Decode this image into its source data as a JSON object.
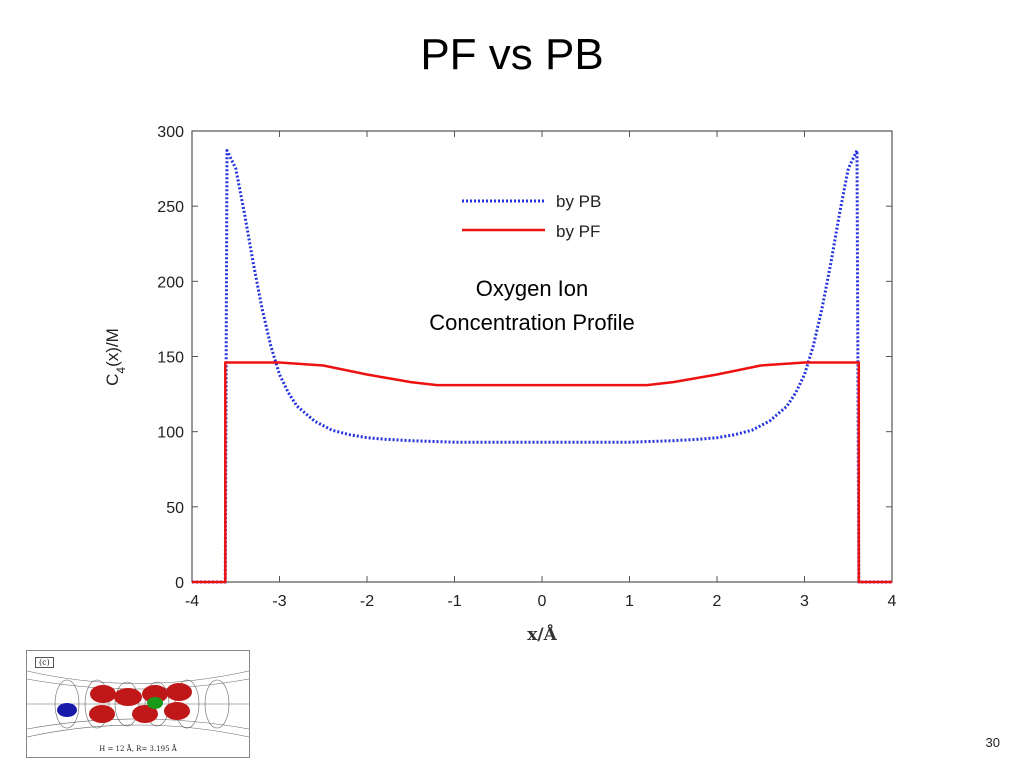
{
  "slide": {
    "title": "PF vs PB",
    "number": "30"
  },
  "thumbnail": {
    "tag": "(c)",
    "caption": "H = 12 Å, R= 3.195 Å"
  },
  "colors": {
    "pb": "#2233dd",
    "pf": "#ee1111",
    "axis": "#555555"
  },
  "chart_data": {
    "type": "line",
    "xlabel": "x/Å",
    "ylabel": "C4(x)/M",
    "xlim": [
      -4,
      4
    ],
    "ylim": [
      0,
      300
    ],
    "xticks": [
      -4,
      -3,
      -2,
      -1,
      0,
      1,
      2,
      3,
      4
    ],
    "yticks": [
      0,
      50,
      100,
      150,
      200,
      250,
      300
    ],
    "grid": false,
    "legend_position": "top-center",
    "annotation": [
      "Oxygen Ion",
      "Concentration Profile"
    ],
    "series": [
      {
        "name": "by PB",
        "style": "dotted",
        "color": "#2233dd",
        "x": [
          -4.0,
          -3.62,
          -3.62,
          -3.6,
          -3.5,
          -3.4,
          -3.3,
          -3.2,
          -3.1,
          -3.0,
          -2.9,
          -2.8,
          -2.6,
          -2.4,
          -2.2,
          -2.0,
          -1.8,
          -1.5,
          -1.0,
          -0.5,
          0.0,
          0.5,
          1.0,
          1.5,
          1.8,
          2.0,
          2.2,
          2.4,
          2.6,
          2.8,
          2.9,
          3.0,
          3.1,
          3.2,
          3.3,
          3.4,
          3.5,
          3.6,
          3.62,
          3.62,
          4.0
        ],
        "y": [
          0,
          0,
          5,
          287,
          275,
          245,
          212,
          182,
          157,
          138,
          126,
          117,
          107,
          101,
          98,
          96,
          95,
          94,
          93,
          93,
          93,
          93,
          93,
          94,
          95,
          96,
          98,
          101,
          107,
          117,
          126,
          138,
          157,
          182,
          212,
          245,
          275,
          287,
          5,
          0,
          0
        ]
      },
      {
        "name": "by PF",
        "style": "solid",
        "color": "#ee1111",
        "x": [
          -4.0,
          -3.62,
          -3.62,
          -3.0,
          -2.5,
          -2.0,
          -1.5,
          -1.2,
          -1.0,
          0.0,
          1.0,
          1.2,
          1.5,
          2.0,
          2.5,
          3.0,
          3.62,
          3.62,
          4.0
        ],
        "y": [
          0,
          0,
          146,
          146,
          144,
          138,
          133,
          131,
          131,
          131,
          131,
          131,
          133,
          138,
          144,
          146,
          146,
          0,
          0
        ]
      }
    ]
  }
}
